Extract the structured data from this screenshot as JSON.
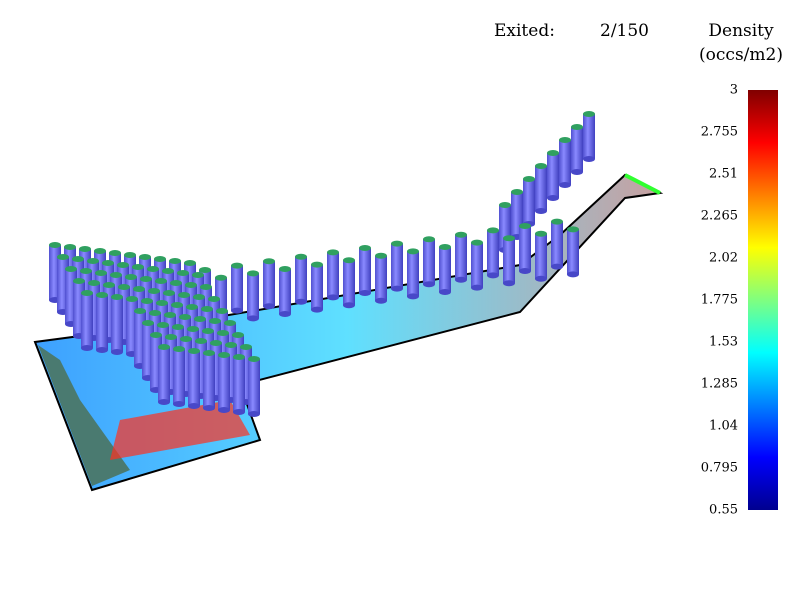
{
  "header": {
    "exited_label": "Exited:",
    "exited_value": "2/150"
  },
  "colorbar": {
    "title": [
      "Density",
      "(occs/m2)"
    ],
    "range": [
      0.55,
      3
    ],
    "ticks": [
      3,
      2.755,
      2.51,
      2.265,
      2.02,
      1.775,
      1.53,
      1.285,
      1.04,
      0.795,
      0.55
    ]
  }
}
